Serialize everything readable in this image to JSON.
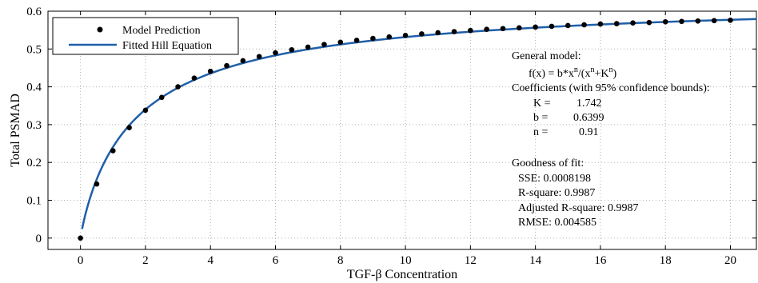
{
  "chart_data": {
    "type": "scatter",
    "xlabel": "TGF-β Concentration",
    "ylabel": "Total PSMAD",
    "xlim": [
      -1,
      20.8
    ],
    "ylim": [
      -0.03,
      0.6
    ],
    "xticks": [
      0,
      2,
      4,
      6,
      8,
      10,
      12,
      14,
      16,
      18,
      20
    ],
    "yticks": [
      0,
      0.1,
      0.2,
      0.3,
      0.4,
      0.5,
      0.6
    ],
    "xtick_labels": [
      "0",
      "2",
      "4",
      "6",
      "8",
      "10",
      "12",
      "14",
      "16",
      "18",
      "20"
    ],
    "ytick_labels": [
      "0",
      "0.1",
      "0.2",
      "0.3",
      "0.4",
      "0.5",
      "0.6"
    ],
    "grid": true,
    "legend_position": "top-left",
    "colors": {
      "points": "#000000",
      "fit": "#1f5fa8"
    },
    "series": [
      {
        "name": "Model Prediction",
        "kind": "points",
        "x": [
          0,
          0.5,
          1,
          1.5,
          2,
          2.5,
          3,
          3.5,
          4,
          4.5,
          5,
          5.5,
          6,
          6.5,
          7,
          7.5,
          8,
          8.5,
          9,
          9.5,
          10,
          10.5,
          11,
          11.5,
          12,
          12.5,
          13,
          13.5,
          14,
          14.5,
          15,
          15.5,
          16,
          16.5,
          17,
          17.5,
          18,
          18.5,
          19,
          19.5,
          20
        ],
        "y": [
          0.0,
          0.143,
          0.231,
          0.292,
          0.338,
          0.372,
          0.4,
          0.423,
          0.441,
          0.456,
          0.469,
          0.48,
          0.49,
          0.498,
          0.505,
          0.512,
          0.518,
          0.523,
          0.528,
          0.532,
          0.536,
          0.54,
          0.543,
          0.546,
          0.549,
          0.552,
          0.554,
          0.556,
          0.558,
          0.56,
          0.562,
          0.564,
          0.566,
          0.567,
          0.569,
          0.57,
          0.572,
          0.573,
          0.574,
          0.575,
          0.576
        ]
      },
      {
        "name": "Fitted Hill Equation",
        "kind": "line",
        "model": {
          "K": 1.742,
          "b": 0.6399,
          "n": 0.91
        },
        "x_range": [
          0.05,
          20.8
        ]
      }
    ],
    "annotations": {
      "general_model_label": "General model:",
      "formula_f": "f(x) = b*x",
      "formula_n1": "n",
      "formula_mid": "/(x",
      "formula_n2": "n",
      "formula_plus": "+K",
      "formula_n3": "n",
      "formula_end": ")",
      "coeff_label": "Coefficients (with 95% confidence bounds):",
      "k_label": "K =",
      "k_value": "1.742",
      "b_label": "b =",
      "b_value": "0.6399",
      "n_label": "n =",
      "n_value": "0.91",
      "gof_label": "Goodness of fit:",
      "sse": "SSE: 0.0008198",
      "rsquare": "R-square: 0.9987",
      "adj_rsquare": "Adjusted R-square: 0.9987",
      "rmse": "RMSE: 0.004585"
    }
  }
}
